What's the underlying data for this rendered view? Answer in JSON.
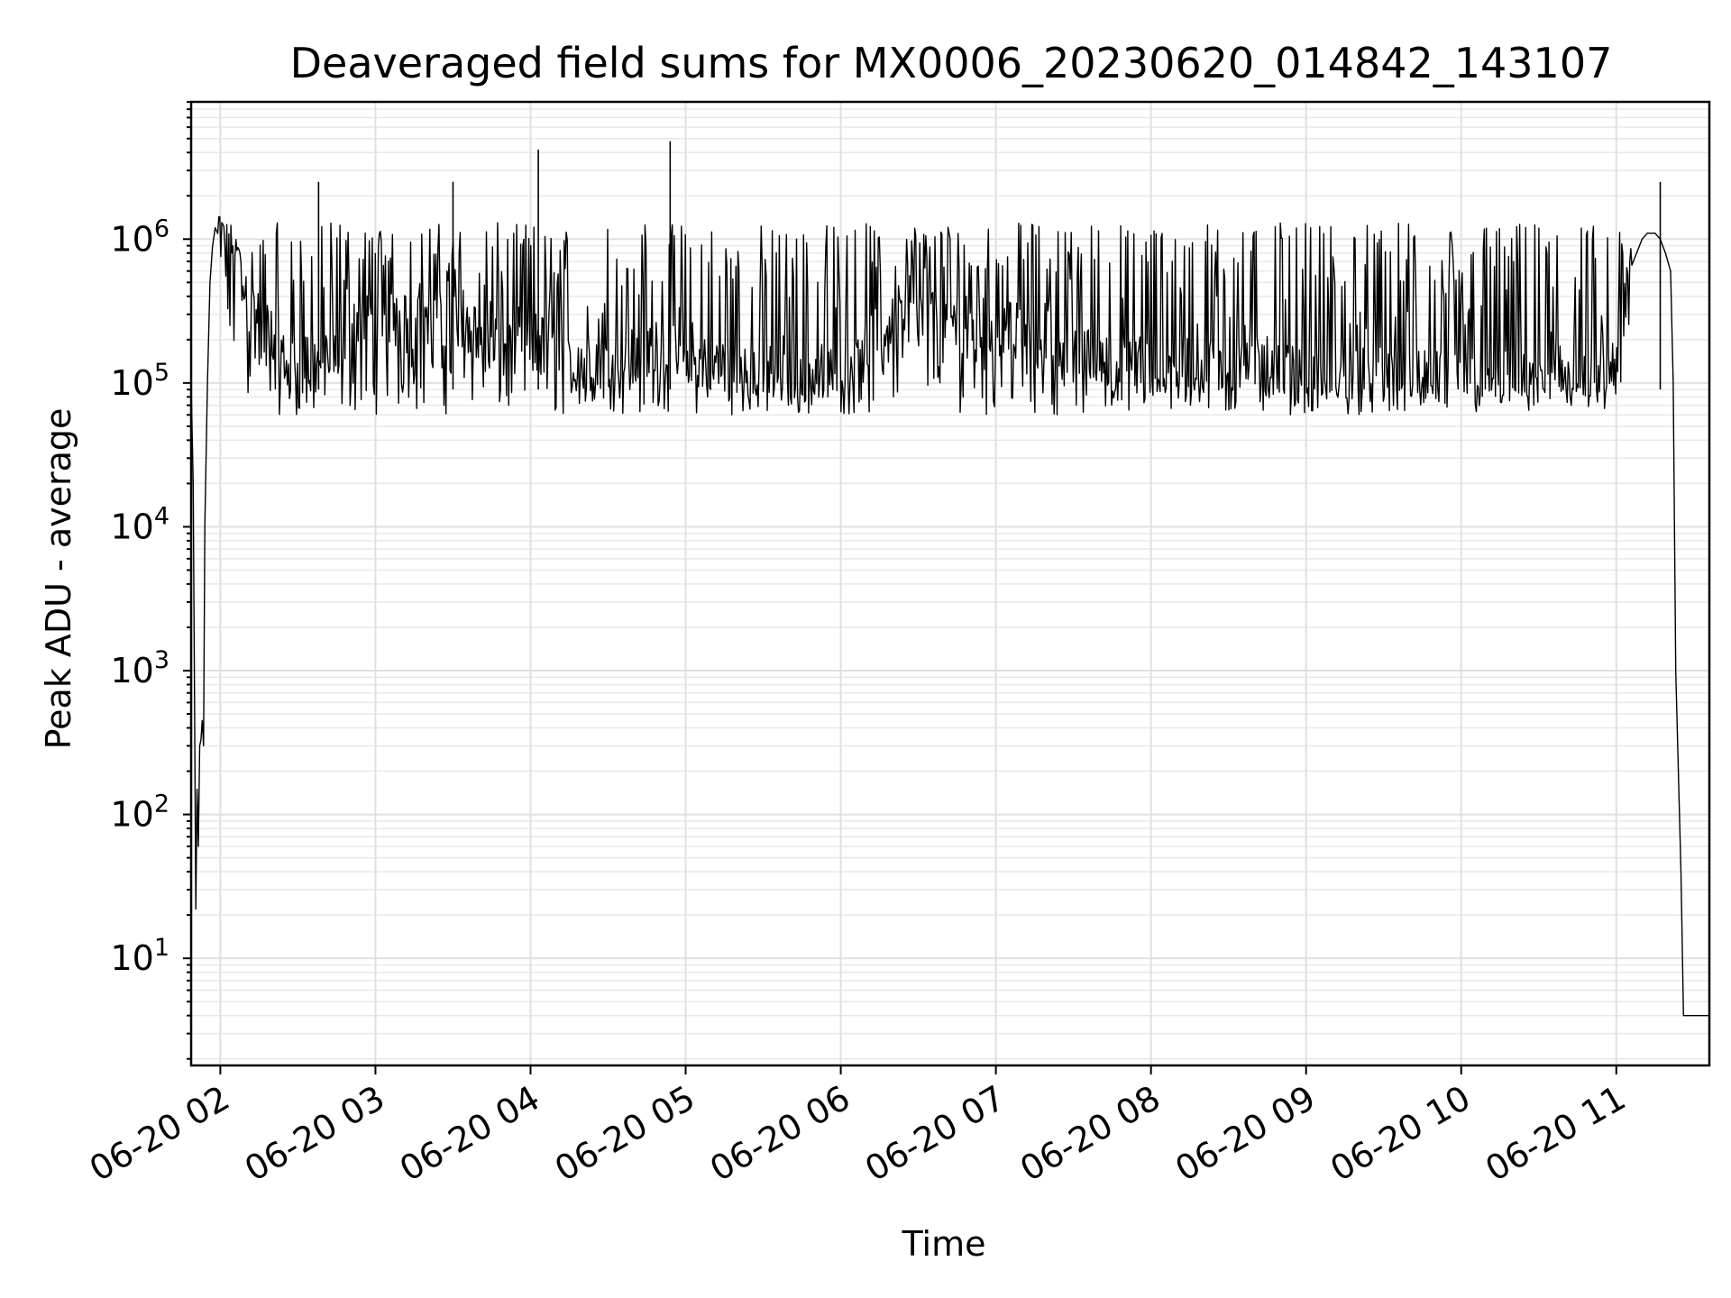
{
  "chart_data": {
    "type": "line",
    "title": "Deaveraged field sums for MX0006_20230620_014842_143107",
    "xlabel": "Time",
    "ylabel": "Peak ADU - average",
    "xscale": "time",
    "yscale": "log",
    "xlim": [
      "2023-06-20 01:48:42",
      "2023-06-20 11:36:00"
    ],
    "ylim": [
      1.8,
      9000000
    ],
    "grid": true,
    "legend": "none",
    "colors": {
      "line": "#000000",
      "grid": "#e0e0e0"
    },
    "x_ticks": [
      {
        "value": "2023-06-20 02:00",
        "label": "06-20 02"
      },
      {
        "value": "2023-06-20 03:00",
        "label": "06-20 03"
      },
      {
        "value": "2023-06-20 04:00",
        "label": "06-20 04"
      },
      {
        "value": "2023-06-20 05:00",
        "label": "06-20 05"
      },
      {
        "value": "2023-06-20 06:00",
        "label": "06-20 06"
      },
      {
        "value": "2023-06-20 07:00",
        "label": "06-20 07"
      },
      {
        "value": "2023-06-20 08:00",
        "label": "06-20 08"
      },
      {
        "value": "2023-06-20 09:00",
        "label": "06-20 09"
      },
      {
        "value": "2023-06-20 10:00",
        "label": "06-20 10"
      },
      {
        "value": "2023-06-20 11:00",
        "label": "06-20 11"
      }
    ],
    "y_ticks": [
      {
        "value": 10,
        "base": "10",
        "exp": "1"
      },
      {
        "value": 100,
        "base": "10",
        "exp": "2"
      },
      {
        "value": 1000,
        "base": "10",
        "exp": "3"
      },
      {
        "value": 10000,
        "base": "10",
        "exp": "4"
      },
      {
        "value": 100000,
        "base": "10",
        "exp": "5"
      },
      {
        "value": 1000000,
        "base": "10",
        "exp": "6"
      }
    ],
    "series": [
      {
        "x": [
          "2023-06-20 01:48:42",
          "2023-06-20 01:49:30",
          "2023-06-20 01:50:30",
          "2023-06-20 01:51:00",
          "2023-06-20 01:51:30",
          "2023-06-20 01:52:00",
          "2023-06-20 01:52:30",
          "2023-06-20 01:53:00",
          "2023-06-20 01:53:30",
          "2023-06-20 01:54:00",
          "2023-06-20 01:55:00",
          "2023-06-20 01:56:00",
          "2023-06-20 01:57:00",
          "2023-06-20 01:58:00",
          "2023-06-20 02:00:00",
          "2023-06-20 02:03:00",
          "2023-06-20 02:05:00",
          "2023-06-20 02:08:00",
          "2023-06-20 02:10:00",
          "2023-06-20 02:15:00",
          "2023-06-20 02:20:00",
          "2023-06-20 02:25:00",
          "2023-06-20 02:30:00",
          "2023-06-20 02:35:00",
          "2023-06-20 02:40:00",
          "2023-06-20 02:45:00",
          "2023-06-20 02:50:00",
          "2023-06-20 02:55:00",
          "2023-06-20 03:00:00",
          "2023-06-20 03:10:00",
          "2023-06-20 03:20:00",
          "2023-06-20 03:30:00",
          "2023-06-20 03:40:00",
          "2023-06-20 03:50:00",
          "2023-06-20 04:00:00",
          "2023-06-20 04:03:00",
          "2023-06-20 04:10:00",
          "2023-06-20 04:20:00",
          "2023-06-20 04:30:00",
          "2023-06-20 04:40:00",
          "2023-06-20 04:50:00",
          "2023-06-20 04:54:00",
          "2023-06-20 05:00:00",
          "2023-06-20 05:15:00",
          "2023-06-20 05:30:00",
          "2023-06-20 05:45:00",
          "2023-06-20 06:00:00",
          "2023-06-20 06:15:00",
          "2023-06-20 06:30:00",
          "2023-06-20 06:45:00",
          "2023-06-20 07:00:00",
          "2023-06-20 07:15:00",
          "2023-06-20 07:30:00",
          "2023-06-20 07:45:00",
          "2023-06-20 08:00:00",
          "2023-06-20 08:15:00",
          "2023-06-20 08:30:00",
          "2023-06-20 08:45:00",
          "2023-06-20 09:00:00",
          "2023-06-20 09:15:00",
          "2023-06-20 09:30:00",
          "2023-06-20 09:45:00",
          "2023-06-20 10:00:00",
          "2023-06-20 10:15:00",
          "2023-06-20 10:30:00",
          "2023-06-20 10:45:00",
          "2023-06-20 10:55:00",
          "2023-06-20 11:00:00",
          "2023-06-20 11:05:00",
          "2023-06-20 11:10:00",
          "2023-06-20 11:12:00",
          "2023-06-20 11:15:00",
          "2023-06-20 11:17:00",
          "2023-06-20 11:19:00",
          "2023-06-20 11:21:00",
          "2023-06-20 11:22:00",
          "2023-06-20 11:23:00",
          "2023-06-20 11:24:00",
          "2023-06-20 11:25:00",
          "2023-06-20 11:26:00",
          "2023-06-20 11:28:00",
          "2023-06-20 11:30:00",
          "2023-06-20 11:36:00"
        ],
        "y": [
          100000,
          20000,
          22,
          150,
          60,
          300,
          330,
          450,
          300,
          10000,
          100000,
          500000,
          900000,
          1200000,
          1400000,
          1000000,
          800000,
          600000,
          400000,
          300000,
          250000,
          150000,
          150000,
          150000,
          150000,
          200000,
          250000,
          300000,
          300000,
          300000,
          300000,
          300000,
          250000,
          200000,
          200000,
          250000,
          150000,
          150000,
          150000,
          180000,
          200000,
          200000,
          150000,
          150000,
          120000,
          120000,
          150000,
          250000,
          350000,
          300000,
          300000,
          250000,
          200000,
          150000,
          150000,
          150000,
          150000,
          150000,
          120000,
          120000,
          130000,
          120000,
          120000,
          120000,
          120000,
          120000,
          110000,
          150000,
          600000,
          1000000,
          1100000,
          1100000,
          1000000,
          800000,
          600000,
          100000,
          1000,
          200,
          40,
          4,
          4,
          4,
          4
        ],
        "envelope": {
          "band_low": 60000,
          "band_high": 1300000,
          "spikes": [
            {
              "x": "2023-06-20 04:03:00",
              "y": 4200000
            },
            {
              "x": "2023-06-20 04:54:00",
              "y": 4800000
            },
            {
              "x": "2023-06-20 11:17:00",
              "y": 2500000
            },
            {
              "x": "2023-06-20 02:38:00",
              "y": 2500000
            },
            {
              "x": "2023-06-20 03:30:00",
              "y": 2500000
            }
          ]
        }
      }
    ]
  }
}
